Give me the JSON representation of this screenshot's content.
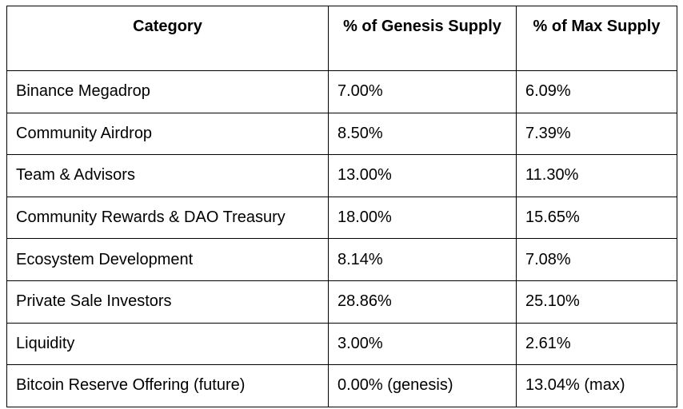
{
  "table": {
    "headers": [
      "Category",
      "% of Genesis Supply",
      "% of Max Supply"
    ],
    "rows": [
      [
        "Binance Megadrop",
        "7.00%",
        "6.09%"
      ],
      [
        "Community Airdrop",
        "8.50%",
        "7.39%"
      ],
      [
        "Team & Advisors",
        "13.00%",
        "11.30%"
      ],
      [
        "Community Rewards & DAO Treasury",
        "18.00%",
        "15.65%"
      ],
      [
        "Ecosystem Development",
        "8.14%",
        "7.08%"
      ],
      [
        "Private Sale Investors",
        "28.86%",
        "25.10%"
      ],
      [
        "Liquidity",
        "3.00%",
        "2.61%"
      ],
      [
        "Bitcoin Reserve Offering (future)",
        "0.00% (genesis)",
        "13.04% (max)"
      ]
    ]
  }
}
